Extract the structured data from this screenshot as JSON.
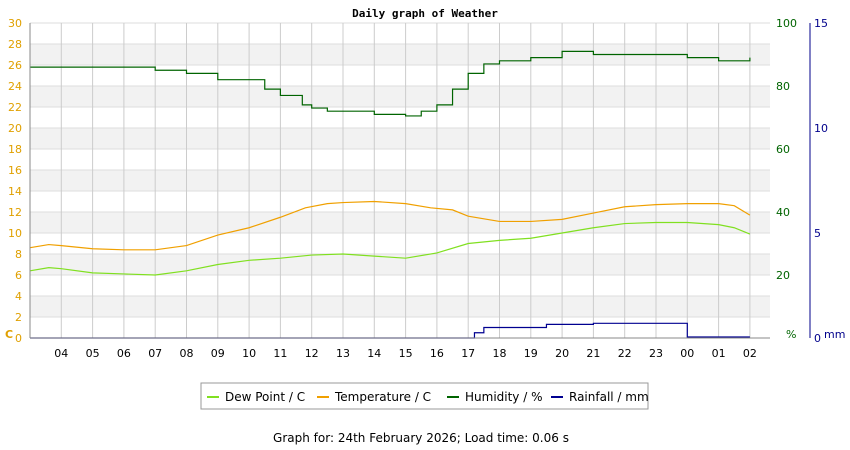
{
  "chart_data": {
    "type": "line",
    "title": "Daily graph of Weather",
    "x_ticks": [
      "04",
      "05",
      "06",
      "07",
      "08",
      "09",
      "10",
      "11",
      "12",
      "13",
      "14",
      "15",
      "16",
      "17",
      "18",
      "19",
      "20",
      "21",
      "22",
      "23",
      "00",
      "01",
      "02"
    ],
    "x_start": 3.0,
    "y_left": {
      "unit_label": "C",
      "range": [
        0,
        30
      ],
      "ticks": [
        0,
        2,
        4,
        6,
        8,
        10,
        12,
        14,
        16,
        18,
        20,
        22,
        24,
        26,
        28,
        30
      ],
      "color": "#e0a000"
    },
    "y_humidity": {
      "unit_label": "%",
      "range": [
        0,
        100
      ],
      "ticks": [
        0,
        20,
        40,
        60,
        80,
        100
      ],
      "color": "#006400"
    },
    "y_rain": {
      "unit_label": "mm",
      "range": [
        0,
        15
      ],
      "ticks": [
        0,
        5,
        10,
        15
      ],
      "color": "#00008b"
    },
    "grid": true,
    "legend_position": "bottom",
    "series": [
      {
        "name": "Dew Point / C",
        "axis": "left",
        "color": "#80e020",
        "points": [
          [
            3.0,
            6.4
          ],
          [
            3.6,
            6.7
          ],
          [
            4.0,
            6.6
          ],
          [
            5.0,
            6.2
          ],
          [
            6.0,
            6.1
          ],
          [
            7.0,
            6.0
          ],
          [
            8.0,
            6.4
          ],
          [
            9.0,
            7.0
          ],
          [
            10.0,
            7.4
          ],
          [
            11.0,
            7.6
          ],
          [
            12.0,
            7.9
          ],
          [
            13.0,
            8.0
          ],
          [
            14.0,
            7.8
          ],
          [
            15.0,
            7.6
          ],
          [
            16.0,
            8.1
          ],
          [
            17.0,
            9.0
          ],
          [
            18.0,
            9.3
          ],
          [
            19.0,
            9.5
          ],
          [
            20.0,
            10.0
          ],
          [
            21.0,
            10.5
          ],
          [
            22.0,
            10.9
          ],
          [
            23.0,
            11.0
          ],
          [
            24.0,
            11.0
          ],
          [
            25.0,
            10.8
          ],
          [
            25.5,
            10.5
          ],
          [
            26.0,
            9.9
          ]
        ]
      },
      {
        "name": "Temperature / C",
        "axis": "left",
        "color": "#f0a000",
        "points": [
          [
            3.0,
            8.6
          ],
          [
            3.6,
            8.9
          ],
          [
            4.0,
            8.8
          ],
          [
            5.0,
            8.5
          ],
          [
            6.0,
            8.4
          ],
          [
            7.0,
            8.4
          ],
          [
            8.0,
            8.8
          ],
          [
            9.0,
            9.8
          ],
          [
            10.0,
            10.5
          ],
          [
            11.0,
            11.5
          ],
          [
            11.8,
            12.4
          ],
          [
            12.5,
            12.8
          ],
          [
            13.0,
            12.9
          ],
          [
            14.0,
            13.0
          ],
          [
            15.0,
            12.8
          ],
          [
            15.8,
            12.4
          ],
          [
            16.5,
            12.2
          ],
          [
            17.0,
            11.6
          ],
          [
            18.0,
            11.1
          ],
          [
            19.0,
            11.1
          ],
          [
            20.0,
            11.3
          ],
          [
            21.0,
            11.9
          ],
          [
            22.0,
            12.5
          ],
          [
            23.0,
            12.7
          ],
          [
            24.0,
            12.8
          ],
          [
            25.0,
            12.8
          ],
          [
            25.5,
            12.6
          ],
          [
            26.0,
            11.7
          ]
        ]
      },
      {
        "name": "Humidity / %",
        "axis": "humidity",
        "color": "#006400",
        "points": [
          [
            3.0,
            86
          ],
          [
            4.0,
            86
          ],
          [
            5.0,
            86
          ],
          [
            6.0,
            86
          ],
          [
            7.0,
            85
          ],
          [
            8.0,
            84
          ],
          [
            9.0,
            82
          ],
          [
            10.0,
            82
          ],
          [
            10.5,
            79
          ],
          [
            11.0,
            77
          ],
          [
            11.7,
            74
          ],
          [
            12.0,
            73
          ],
          [
            12.5,
            72
          ],
          [
            13.0,
            72
          ],
          [
            13.5,
            72
          ],
          [
            14.0,
            71
          ],
          [
            15.0,
            70.5
          ],
          [
            15.5,
            72
          ],
          [
            16.0,
            74
          ],
          [
            16.5,
            79
          ],
          [
            17.0,
            84
          ],
          [
            17.5,
            87
          ],
          [
            18.0,
            88
          ],
          [
            19.0,
            89
          ],
          [
            20.0,
            91
          ],
          [
            21.0,
            90
          ],
          [
            22.0,
            90
          ],
          [
            23.0,
            90
          ],
          [
            24.0,
            89
          ],
          [
            25.0,
            88
          ],
          [
            26.0,
            89
          ]
        ]
      },
      {
        "name": "Rainfall / mm",
        "axis": "rain",
        "color": "#000090",
        "points": [
          [
            3.0,
            0
          ],
          [
            17.0,
            0
          ],
          [
            17.2,
            0.25
          ],
          [
            17.5,
            0.5
          ],
          [
            19.0,
            0.5
          ],
          [
            19.5,
            0.65
          ],
          [
            21.0,
            0.7
          ],
          [
            22.0,
            0.7
          ],
          [
            23.0,
            0.7
          ],
          [
            23.9,
            0.7
          ],
          [
            24.0,
            0.05
          ],
          [
            26.0,
            0.05
          ]
        ]
      }
    ]
  },
  "footer": {
    "text": "Graph for: 24th February 2026; Load time: 0.06 s"
  }
}
